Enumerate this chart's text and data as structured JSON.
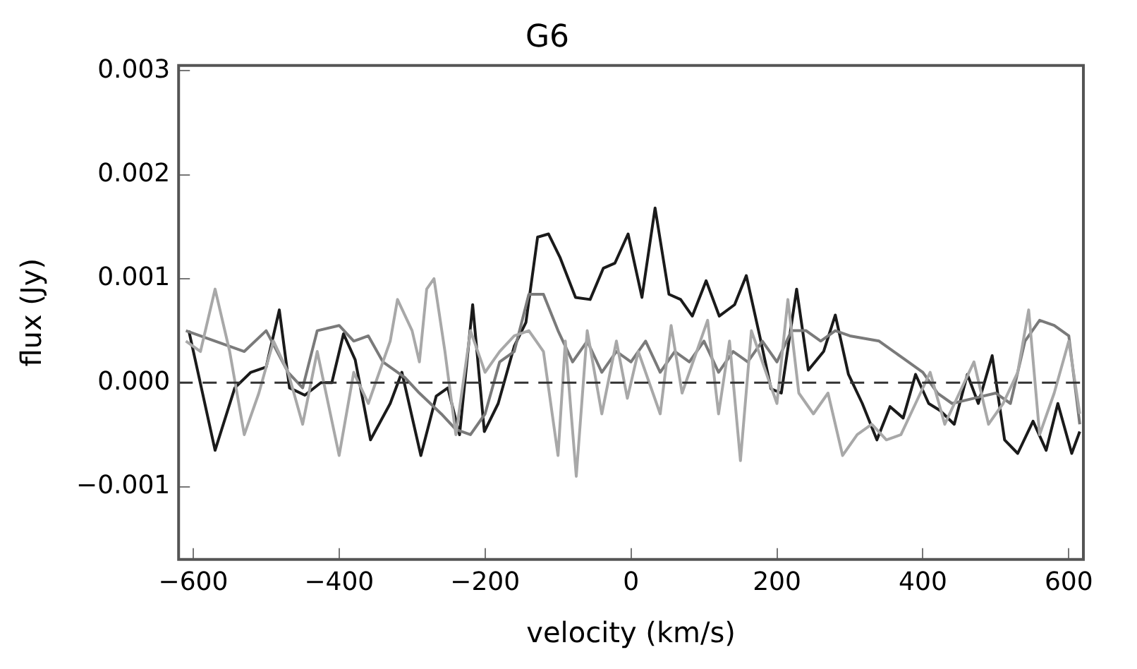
{
  "chart_data": {
    "type": "line",
    "title": "G6",
    "xlabel": "velocity (km/s)",
    "ylabel": "flux (Jy)",
    "xlim": [
      -620,
      620
    ],
    "ylim": [
      -0.0017,
      0.00305
    ],
    "xticks": [
      {
        "value": -600,
        "label": "−600"
      },
      {
        "value": -400,
        "label": "−400"
      },
      {
        "value": -200,
        "label": "−200"
      },
      {
        "value": 0,
        "label": "0"
      },
      {
        "value": 200,
        "label": "200"
      },
      {
        "value": 400,
        "label": "400"
      },
      {
        "value": 600,
        "label": "600"
      }
    ],
    "yticks": [
      {
        "value": -0.001,
        "label": "−0.001"
      },
      {
        "value": 0,
        "label": "0.000"
      },
      {
        "value": 0.001,
        "label": "0.001"
      },
      {
        "value": 0.002,
        "label": "0.002"
      },
      {
        "value": 0.003,
        "label": "0.003"
      }
    ],
    "grid": false,
    "legend": false,
    "line_style": "solid",
    "marker": "none",
    "ref_lines": [
      {
        "axis": "y",
        "value": 0,
        "color": "#333333",
        "line_style": "dashed"
      }
    ],
    "series": [
      {
        "color": "#a8a8a8",
        "x": [
          -610,
          -590,
          -570,
          -550,
          -530,
          -510,
          -490,
          -470,
          -450,
          -430,
          -400,
          -380,
          -360,
          -330,
          -320,
          -300,
          -290,
          -280,
          -270,
          -255,
          -240,
          -220,
          -200,
          -180,
          -160,
          -140,
          -120,
          -100,
          -90,
          -75,
          -60,
          -40,
          -20,
          -5,
          10,
          30,
          40,
          55,
          70,
          90,
          105,
          120,
          135,
          150,
          165,
          180,
          200,
          215,
          230,
          250,
          270,
          290,
          310,
          330,
          350,
          370,
          390,
          410,
          430,
          450,
          470,
          490,
          510,
          530,
          545,
          560,
          580,
          600,
          615
        ],
        "values": [
          0.0004,
          0.0003,
          0.0009,
          0.0003,
          -0.0005,
          -0.0001,
          0.0004,
          0.0001,
          -0.0004,
          0.0003,
          -0.0007,
          0.0001,
          -0.0002,
          0.0004,
          0.0008,
          0.0005,
          0.0002,
          0.0009,
          0.001,
          0.0003,
          -0.0005,
          0.0005,
          0.0001,
          0.0003,
          0.00045,
          0.0005,
          0.0003,
          -0.0007,
          0.0004,
          -0.0009,
          0.0005,
          -0.0003,
          0.0004,
          -0.00015,
          0.0003,
          -0.0001,
          -0.0003,
          0.00055,
          -0.0001,
          0.0003,
          0.0006,
          -0.0003,
          0.0004,
          -0.00075,
          0.0005,
          0.0002,
          -0.0002,
          0.0008,
          -0.0001,
          -0.0003,
          -0.0001,
          -0.0007,
          -0.0005,
          -0.0004,
          -0.00055,
          -0.0005,
          -0.0002,
          0.0001,
          -0.0004,
          -0.0001,
          0.0002,
          -0.0004,
          -0.0002,
          0.0001,
          0.0007,
          -0.0005,
          -0.0001,
          0.0004,
          -0.0003
        ]
      },
      {
        "color": "#7a7a7a",
        "x": [
          -610,
          -570,
          -530,
          -500,
          -470,
          -450,
          -430,
          -400,
          -380,
          -360,
          -340,
          -310,
          -290,
          -260,
          -240,
          -220,
          -200,
          -180,
          -160,
          -140,
          -120,
          -100,
          -80,
          -60,
          -40,
          -20,
          0,
          20,
          40,
          60,
          80,
          100,
          120,
          140,
          160,
          180,
          200,
          220,
          240,
          260,
          280,
          300,
          340,
          360,
          400,
          420,
          440,
          470,
          500,
          520,
          540,
          560,
          580,
          600,
          615
        ],
        "values": [
          0.0005,
          0.0004,
          0.0003,
          0.0005,
          0.0001,
          -5e-05,
          0.0005,
          0.00055,
          0.0004,
          0.00045,
          0.0002,
          5e-05,
          -0.0001,
          -0.0003,
          -0.00045,
          -0.0005,
          -0.0003,
          0.0002,
          0.0003,
          0.00085,
          0.00085,
          0.0005,
          0.0002,
          0.0004,
          0.0001,
          0.0003,
          0.0002,
          0.0004,
          0.0001,
          0.0003,
          0.0002,
          0.0004,
          0.0001,
          0.0003,
          0.0002,
          0.0004,
          0.0002,
          0.0005,
          0.0005,
          0.0004,
          0.0005,
          0.00045,
          0.0004,
          0.0003,
          0.0001,
          -0.0001,
          -0.0002,
          -0.00015,
          -0.0001,
          -0.0002,
          0.0004,
          0.0006,
          0.00055,
          0.00045,
          -0.0004
        ]
      },
      {
        "color": "#1a1a1a",
        "x": [
          -606,
          -570,
          -543,
          -521,
          -500,
          -482,
          -468,
          -447,
          -425,
          -410,
          -394,
          -378,
          -357,
          -330,
          -314,
          -288,
          -267,
          -251,
          -235,
          -217,
          -201,
          -182,
          -160,
          -144,
          -128,
          -113,
          -97,
          -76,
          -56,
          -38,
          -22,
          -4,
          15,
          33,
          52,
          68,
          84,
          103,
          121,
          142,
          158,
          177,
          192,
          206,
          227,
          243,
          264,
          280,
          298,
          317,
          337,
          355,
          373,
          390,
          408,
          424,
          443,
          461,
          476,
          495,
          512,
          530,
          551,
          569,
          585,
          604,
          615
        ],
        "values": [
          0.0005,
          -0.00065,
          -5e-05,
          0.0001,
          0.00015,
          0.0007,
          -5e-05,
          -0.00012,
          0,
          0,
          0.00047,
          0.00022,
          -0.00055,
          -0.0002,
          0.0001,
          -0.0007,
          -0.00013,
          -5e-05,
          -0.0005,
          0.00075,
          -0.00047,
          -0.0002,
          0.00035,
          0.00058,
          0.0014,
          0.00143,
          0.0012,
          0.00082,
          0.0008,
          0.0011,
          0.00115,
          0.00143,
          0.00082,
          0.00168,
          0.00085,
          0.0008,
          0.00064,
          0.00098,
          0.00064,
          0.00075,
          0.00103,
          0.00043,
          -6e-05,
          -0.0001,
          0.0009,
          0.00012,
          0.0003,
          0.00065,
          8e-05,
          -0.0002,
          -0.00055,
          -0.00023,
          -0.00034,
          8e-05,
          -0.0002,
          -0.00027,
          -0.0004,
          8e-05,
          -0.0002,
          0.00026,
          -0.00055,
          -0.00068,
          -0.00037,
          -0.00065,
          -0.0002,
          -0.00068,
          -0.00047
        ]
      }
    ]
  }
}
